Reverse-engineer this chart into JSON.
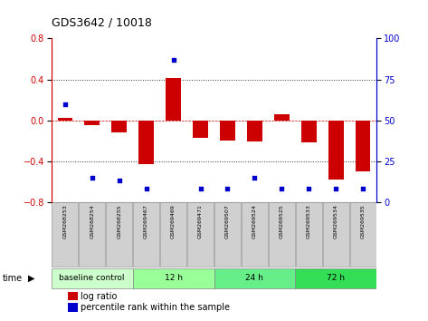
{
  "title": "GDS3642 / 10018",
  "samples": [
    "GSM268253",
    "GSM268254",
    "GSM268255",
    "GSM269467",
    "GSM269469",
    "GSM269471",
    "GSM269507",
    "GSM269524",
    "GSM269525",
    "GSM269533",
    "GSM269534",
    "GSM269535"
  ],
  "log_ratio": [
    0.02,
    -0.05,
    -0.12,
    -0.43,
    0.41,
    -0.17,
    -0.2,
    -0.21,
    0.06,
    -0.22,
    -0.58,
    -0.5
  ],
  "percentile_rank": [
    60,
    15,
    13,
    8,
    87,
    8,
    8,
    15,
    8,
    8,
    8,
    8
  ],
  "groups": [
    {
      "label": "baseline control",
      "start": 0,
      "end": 3,
      "color": "#ccffcc"
    },
    {
      "label": "12 h",
      "start": 3,
      "end": 6,
      "color": "#99ff99"
    },
    {
      "label": "24 h",
      "start": 6,
      "end": 9,
      "color": "#66ee88"
    },
    {
      "label": "72 h",
      "start": 9,
      "end": 12,
      "color": "#33dd55"
    }
  ],
  "ylim_left": [
    -0.8,
    0.8
  ],
  "ylim_right": [
    0,
    100
  ],
  "yticks_left": [
    -0.8,
    -0.4,
    0.0,
    0.4,
    0.8
  ],
  "yticks_right": [
    0,
    25,
    50,
    75,
    100
  ],
  "bar_color": "#cc0000",
  "dot_color": "#0000cc",
  "bg_color": "#ffffff",
  "plot_bg": "#ffffff",
  "dotted_color": "#333333",
  "left_axis_color": "#cc0000",
  "right_axis_color": "#0000cc",
  "sample_box_color": "#d0d0d0",
  "time_label": "time"
}
